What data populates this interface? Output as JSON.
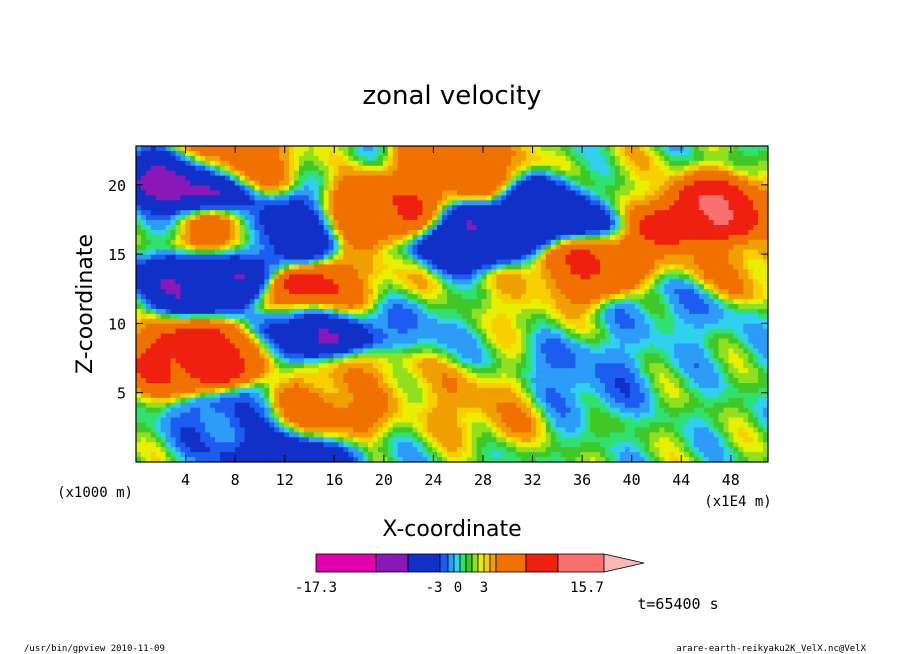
{
  "chart_data": {
    "type": "heatmap",
    "title": "zonal velocity",
    "xlabel": "X-coordinate",
    "ylabel": "Z-coordinate",
    "x_unit_note": "(x1E4 m)",
    "y_unit_note": "(x1000 m)",
    "xlim": [
      0,
      51
    ],
    "ylim": [
      0,
      22.8
    ],
    "x_ticks": [
      4,
      8,
      12,
      16,
      20,
      24,
      28,
      32,
      36,
      40,
      44,
      48
    ],
    "y_ticks": [
      5,
      10,
      15,
      20
    ],
    "colorbar": {
      "min_label": "-17.3",
      "max_label": "15.7",
      "labels": [
        "-3",
        "0",
        "3"
      ],
      "colors": [
        "#e000b0",
        "#8a18b8",
        "#1030c8",
        "#1c5cf0",
        "#2c9cf8",
        "#30d0f0",
        "#30e070",
        "#40c828",
        "#90e020",
        "#e8f000",
        "#f8d000",
        "#f0a000",
        "#f07000",
        "#f02010",
        "#f87070",
        "#f8b8b8"
      ]
    },
    "color_levels": [
      -17.3,
      -8,
      -3,
      -2,
      -1,
      -0.5,
      0,
      0.5,
      1,
      1.5,
      2,
      3,
      6,
      10,
      15.7
    ],
    "field_features": [
      {
        "x": 5.0,
        "z": 7.5,
        "value": 8.0
      },
      {
        "x": 6.5,
        "z": 16.5,
        "value": 7.0
      },
      {
        "x": 5.5,
        "z": 13.5,
        "value": -8.0
      },
      {
        "x": 4.5,
        "z": 19.8,
        "value": -12.0
      },
      {
        "x": 7.5,
        "z": 21.5,
        "value": 5.0
      },
      {
        "x": 14.0,
        "z": 3.0,
        "value": 6.0
      },
      {
        "x": 15.5,
        "z": 11.8,
        "value": 9.0
      },
      {
        "x": 15.5,
        "z": 10.0,
        "value": -9.0
      },
      {
        "x": 12.5,
        "z": 1.0,
        "value": -8.0
      },
      {
        "x": 11.0,
        "z": 16.5,
        "value": -6.0
      },
      {
        "x": 20.5,
        "z": 18.0,
        "value": 6.0
      },
      {
        "x": 26.0,
        "z": 21.3,
        "value": 5.0
      },
      {
        "x": 27.0,
        "z": 16.0,
        "value": -8.0
      },
      {
        "x": 33.5,
        "z": 17.8,
        "value": -7.0
      },
      {
        "x": 36.5,
        "z": 14.2,
        "value": 6.0
      },
      {
        "x": 45.5,
        "z": 18.0,
        "value": 10.0
      },
      {
        "x": 36.0,
        "z": 6.0,
        "value": -2.0
      },
      {
        "x": 44.0,
        "z": 11.0,
        "value": -1.5
      },
      {
        "x": 45.5,
        "z": 8.5,
        "value": -0.5
      },
      {
        "x": 22.0,
        "z": 10.5,
        "value": -1.5
      },
      {
        "x": 28.0,
        "z": 4.0,
        "value": 2.5
      },
      {
        "x": 18.5,
        "z": 6.0,
        "value": 2.5
      },
      {
        "x": 8.5,
        "z": 3.0,
        "value": -3.0
      },
      {
        "x": 1.0,
        "z": 17.0,
        "value": -0.8
      },
      {
        "x": 20.0,
        "z": 13.0,
        "value": 1.5
      },
      {
        "x": 40.0,
        "z": 20.0,
        "value": 1.0
      },
      {
        "x": 48.0,
        "z": 14.0,
        "value": 3.0
      },
      {
        "x": 30.0,
        "z": 12.0,
        "value": 1.5
      }
    ],
    "legend": "none",
    "grid": false
  },
  "annotations": {
    "time": "t=65400 s",
    "footer_left": "/usr/bin/gpview  2010-11-09",
    "footer_right": "arare-earth-reikyaku2K_VelX.nc@VelX"
  }
}
